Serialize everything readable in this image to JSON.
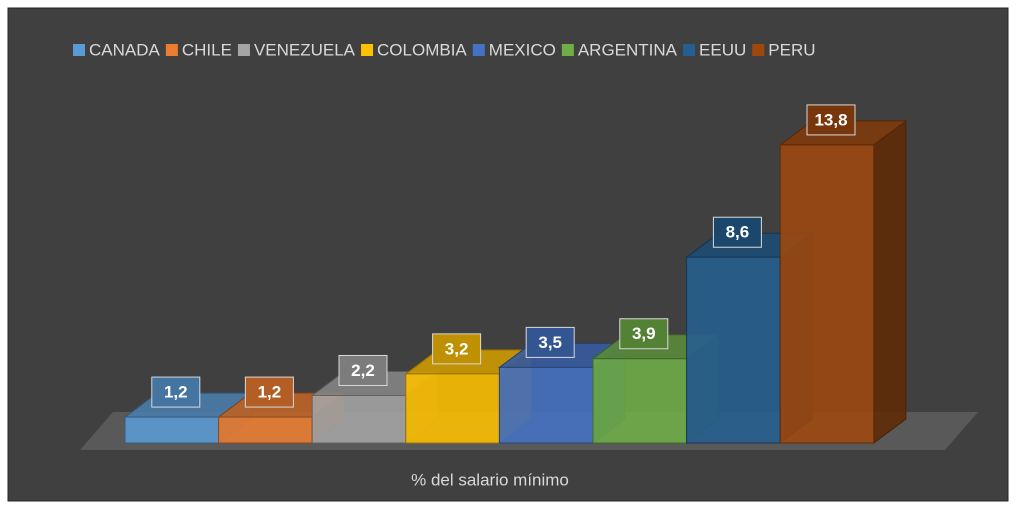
{
  "chart_data": {
    "type": "bar3d",
    "categories": [
      "% del salario mínimo"
    ],
    "series": [
      {
        "name": "CANADA",
        "color": "#5b9bd5",
        "values": [
          1.2
        ],
        "value_labels": [
          "1,2"
        ]
      },
      {
        "name": "CHILE",
        "color": "#ed7d31",
        "values": [
          1.2
        ],
        "value_labels": [
          "1,2"
        ]
      },
      {
        "name": "VENEZUELA",
        "color": "#a5a5a5",
        "values": [
          2.2
        ],
        "value_labels": [
          "2,2"
        ]
      },
      {
        "name": "COLOMBIA",
        "color": "#ffc000",
        "values": [
          3.2
        ],
        "value_labels": [
          "3,2"
        ]
      },
      {
        "name": "MEXICO",
        "color": "#4472c4",
        "values": [
          3.5
        ],
        "value_labels": [
          "3,5"
        ]
      },
      {
        "name": "ARGENTINA",
        "color": "#70ad47",
        "values": [
          3.9
        ],
        "value_labels": [
          "3,9"
        ]
      },
      {
        "name": "EEUU",
        "color": "#255e91",
        "values": [
          8.6
        ],
        "value_labels": [
          "8,6"
        ]
      },
      {
        "name": "PERU",
        "color": "#9e480e",
        "values": [
          13.8
        ],
        "value_labels": [
          "13,8"
        ]
      }
    ],
    "legend": "top"
  }
}
